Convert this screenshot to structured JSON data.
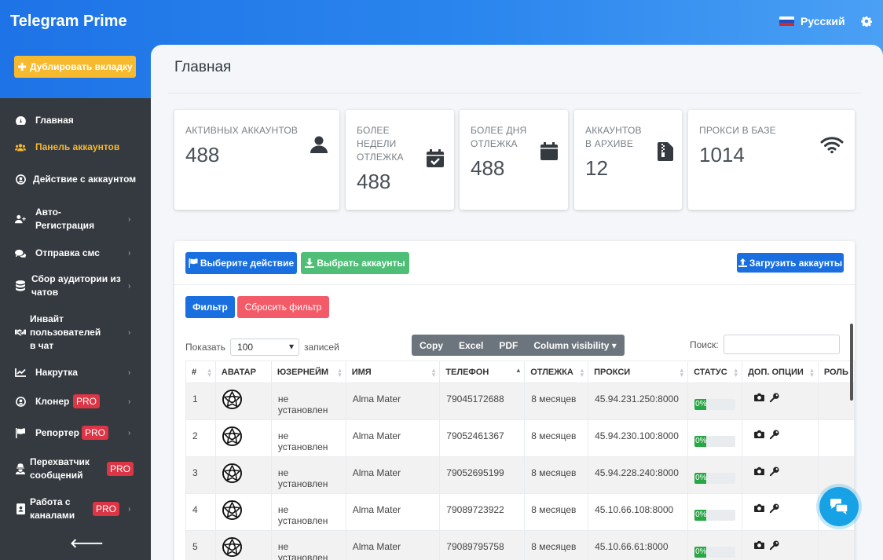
{
  "app": {
    "title": "Telegram Prime",
    "language": "Русский"
  },
  "colors": {
    "accent": "#1a6fe0",
    "warning": "#f7b92e",
    "success": "#4fbf78",
    "danger": "#f45b69",
    "sidebar": "#343a40"
  },
  "duplicate_button": "Дублировать вкладку",
  "sidebar": {
    "items": [
      {
        "label": "Главная",
        "icon": "dashboard-icon"
      },
      {
        "label": "Панель аккаунтов",
        "icon": "users-icon",
        "active": true
      },
      {
        "label": "Действие с аккаунтом",
        "icon": "user-circle-icon"
      },
      {
        "label": "Авто-Регистрация",
        "icon": "user-plus-icon"
      },
      {
        "label": "Отправка смс",
        "icon": "comments-icon"
      },
      {
        "label": "Сбор аудитории из чатов",
        "icon": "database-icon"
      },
      {
        "label": "Инвайт пользователей в чат",
        "icon": "handshake-icon"
      },
      {
        "label": "Накрутка",
        "icon": "chart-line-icon"
      },
      {
        "label": "Клонер",
        "icon": "user-circle-icon",
        "badge": "PRO"
      },
      {
        "label": "Репортер",
        "icon": "flag-icon",
        "badge": "PRO"
      },
      {
        "label": "Перехватчик сообщений",
        "icon": "user-secret-icon",
        "badge": "PRO"
      },
      {
        "label": "Работа с каналами",
        "icon": "address-book-icon",
        "badge": "PRO"
      }
    ]
  },
  "page": {
    "title": "Главная"
  },
  "stats": [
    {
      "label": "Активных аккаунтов",
      "value": "488",
      "icon": "user-icon"
    },
    {
      "label": "Более недели отлежка",
      "value": "488",
      "icon": "calendar-check-icon"
    },
    {
      "label": "Более дня отлежка",
      "value": "488",
      "icon": "calendar-icon"
    },
    {
      "label": "Аккаунтов в архиве",
      "value": "12",
      "icon": "file-archive-icon"
    },
    {
      "label": "Прокси в базе",
      "value": "1014",
      "icon": "wifi-icon"
    }
  ],
  "actions": {
    "choose_action": "Выберите действие",
    "select_accounts": "Выбрать аккаунты",
    "upload_accounts": "Загрузить аккаунты",
    "filter": "Фильтр",
    "reset_filter": "Сбросить фильтр"
  },
  "table_controls": {
    "show_label": "Показать",
    "page_length": "100",
    "entries_label": "записей",
    "export_buttons": [
      "Copy",
      "Excel",
      "PDF",
      "Column visibility"
    ],
    "search_label": "Поиск:"
  },
  "table": {
    "columns": [
      "#",
      "Аватар",
      "Юзернейм",
      "Имя",
      "Телефон",
      "Отлежка",
      "Прокси",
      "Статус",
      "Доп. опции",
      "Роль"
    ],
    "rows": [
      {
        "num": "1",
        "username": "не установлен",
        "name": "Alma Mater",
        "phone": "79045172688",
        "age": "8 месяцев",
        "proxy": "45.94.231.250:8000",
        "status": "0%",
        "status_value": 0
      },
      {
        "num": "2",
        "username": "не установлен",
        "name": "Alma Mater",
        "phone": "79052461367",
        "age": "8 месяцев",
        "proxy": "45.94.230.100:8000",
        "status": "0%",
        "status_value": 0
      },
      {
        "num": "3",
        "username": "не установлен",
        "name": "Alma Mater",
        "phone": "79052695199",
        "age": "8 месяцев",
        "proxy": "45.94.228.240:8000",
        "status": "0%",
        "status_value": 0
      },
      {
        "num": "4",
        "username": "не установлен",
        "name": "Alma Mater",
        "phone": "79089723922",
        "age": "8 месяцев",
        "proxy": "45.10.66.108:8000",
        "status": "0%",
        "status_value": 0
      },
      {
        "num": "5",
        "username": "не установлен",
        "name": "Alma Mater",
        "phone": "79089795758",
        "age": "8 месяцев",
        "proxy": "45.10.66.61:8000",
        "status": "0%",
        "status_value": 0
      }
    ]
  }
}
